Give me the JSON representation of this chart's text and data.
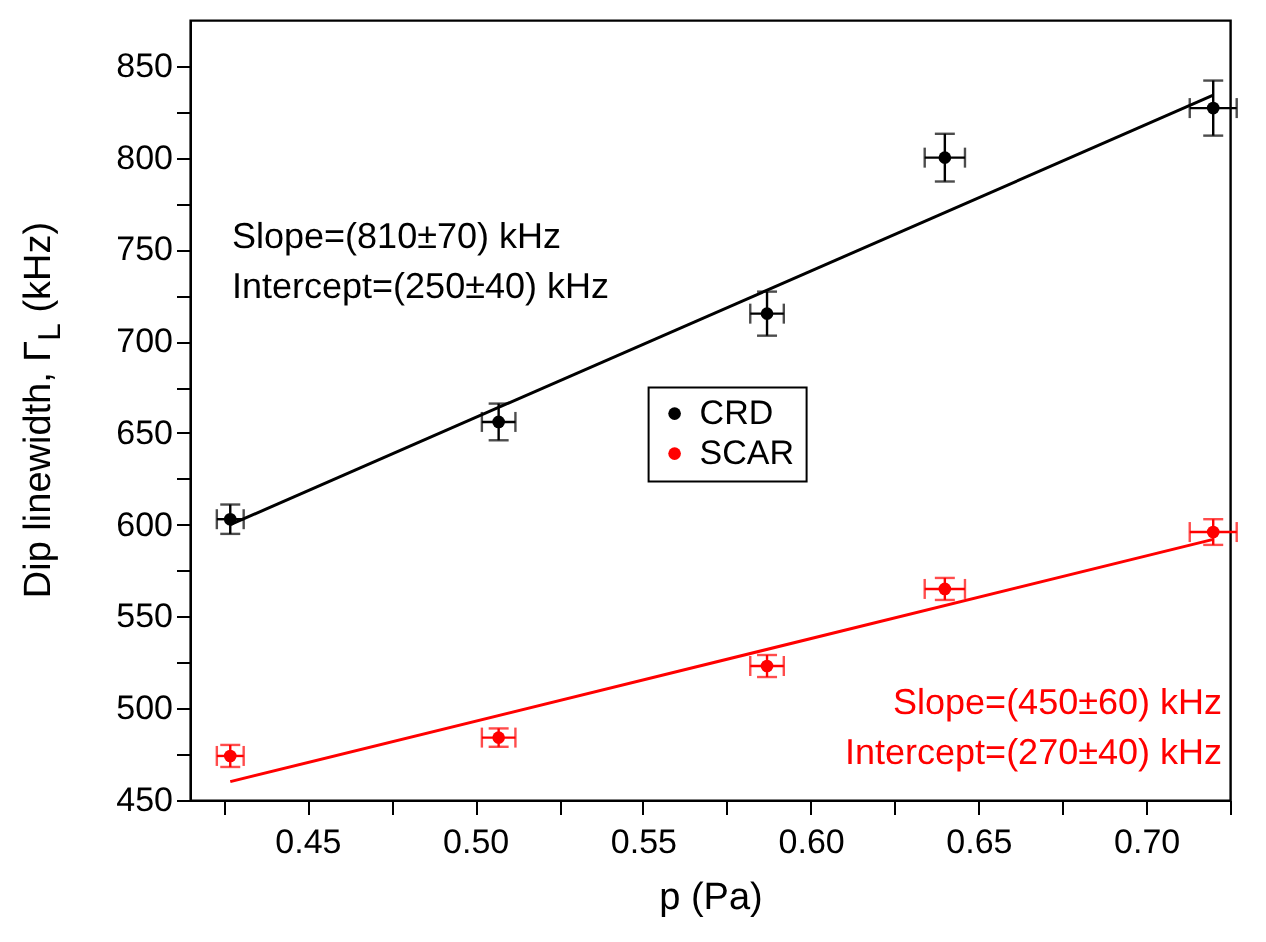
{
  "chart_data": {
    "type": "scatter",
    "xlabel": "p  (Pa)",
    "ylabel": "Dip linewidth, Γ$_{L}$ (kHz)",
    "xlim": [
      0.415,
      0.725
    ],
    "ylim": [
      450,
      875
    ],
    "xticks": [
      {
        "value": 0.425,
        "label": null
      },
      0.45,
      {
        "value": 0.475,
        "label": null
      },
      {
        "value": 0.5,
        "label": "0.50"
      },
      {
        "value": 0.525,
        "label": null
      },
      0.55,
      {
        "value": 0.575,
        "label": null
      },
      {
        "value": 0.6,
        "label": "0.60"
      },
      {
        "value": 0.625,
        "label": null
      },
      0.65,
      {
        "value": 0.675,
        "label": null
      },
      {
        "value": 0.7,
        "label": "0.70"
      },
      {
        "value": 0.725,
        "label": null
      }
    ],
    "yticks": [
      450,
      {
        "value": 475,
        "label": null
      },
      500,
      {
        "value": 525,
        "label": null
      },
      550,
      {
        "value": 575,
        "label": null
      },
      600,
      {
        "value": 625,
        "label": null
      },
      650,
      {
        "value": 675,
        "label": null
      },
      700,
      {
        "value": 725,
        "label": null
      },
      750,
      {
        "value": 775,
        "label": null
      },
      800,
      {
        "value": 825,
        "label": null
      },
      850
    ],
    "grid": false,
    "legend": "center",
    "marker": "circle",
    "series": [
      {
        "name": "CRD",
        "color": "#000000",
        "x": [
          0.427,
          0.507,
          0.587,
          0.64,
          0.72
        ],
        "values": [
          603,
          656,
          715,
          800,
          827
        ],
        "errors": [
          8,
          10,
          12,
          13,
          15
        ],
        "xerrors": [
          0.004,
          0.005,
          0.005,
          0.006,
          0.007
        ]
      },
      {
        "name": "SCAR",
        "color": "#ff0000",
        "x": [
          0.427,
          0.507,
          0.587,
          0.64,
          0.72
        ],
        "values": [
          474,
          484,
          523,
          565,
          596
        ],
        "errors": [
          6,
          5,
          6,
          6,
          7
        ],
        "xerrors": [
          0.004,
          0.005,
          0.005,
          0.006,
          0.007
        ]
      },
      {
        "type": "line",
        "marker": "none",
        "color": "#000000",
        "x": [
          0.427,
          0.72
        ],
        "values": [
          600,
          834
        ]
      },
      {
        "type": "line",
        "marker": "none",
        "color": "#ff0000",
        "x": [
          0.427,
          0.72
        ],
        "values": [
          460,
          592
        ]
      }
    ],
    "annotations": [
      "Slope=(810±70) kHz\nIntercept=(250±40) kHz",
      "Slope=(450±60) kHz\nIntercept=(270±40) kHz"
    ]
  }
}
